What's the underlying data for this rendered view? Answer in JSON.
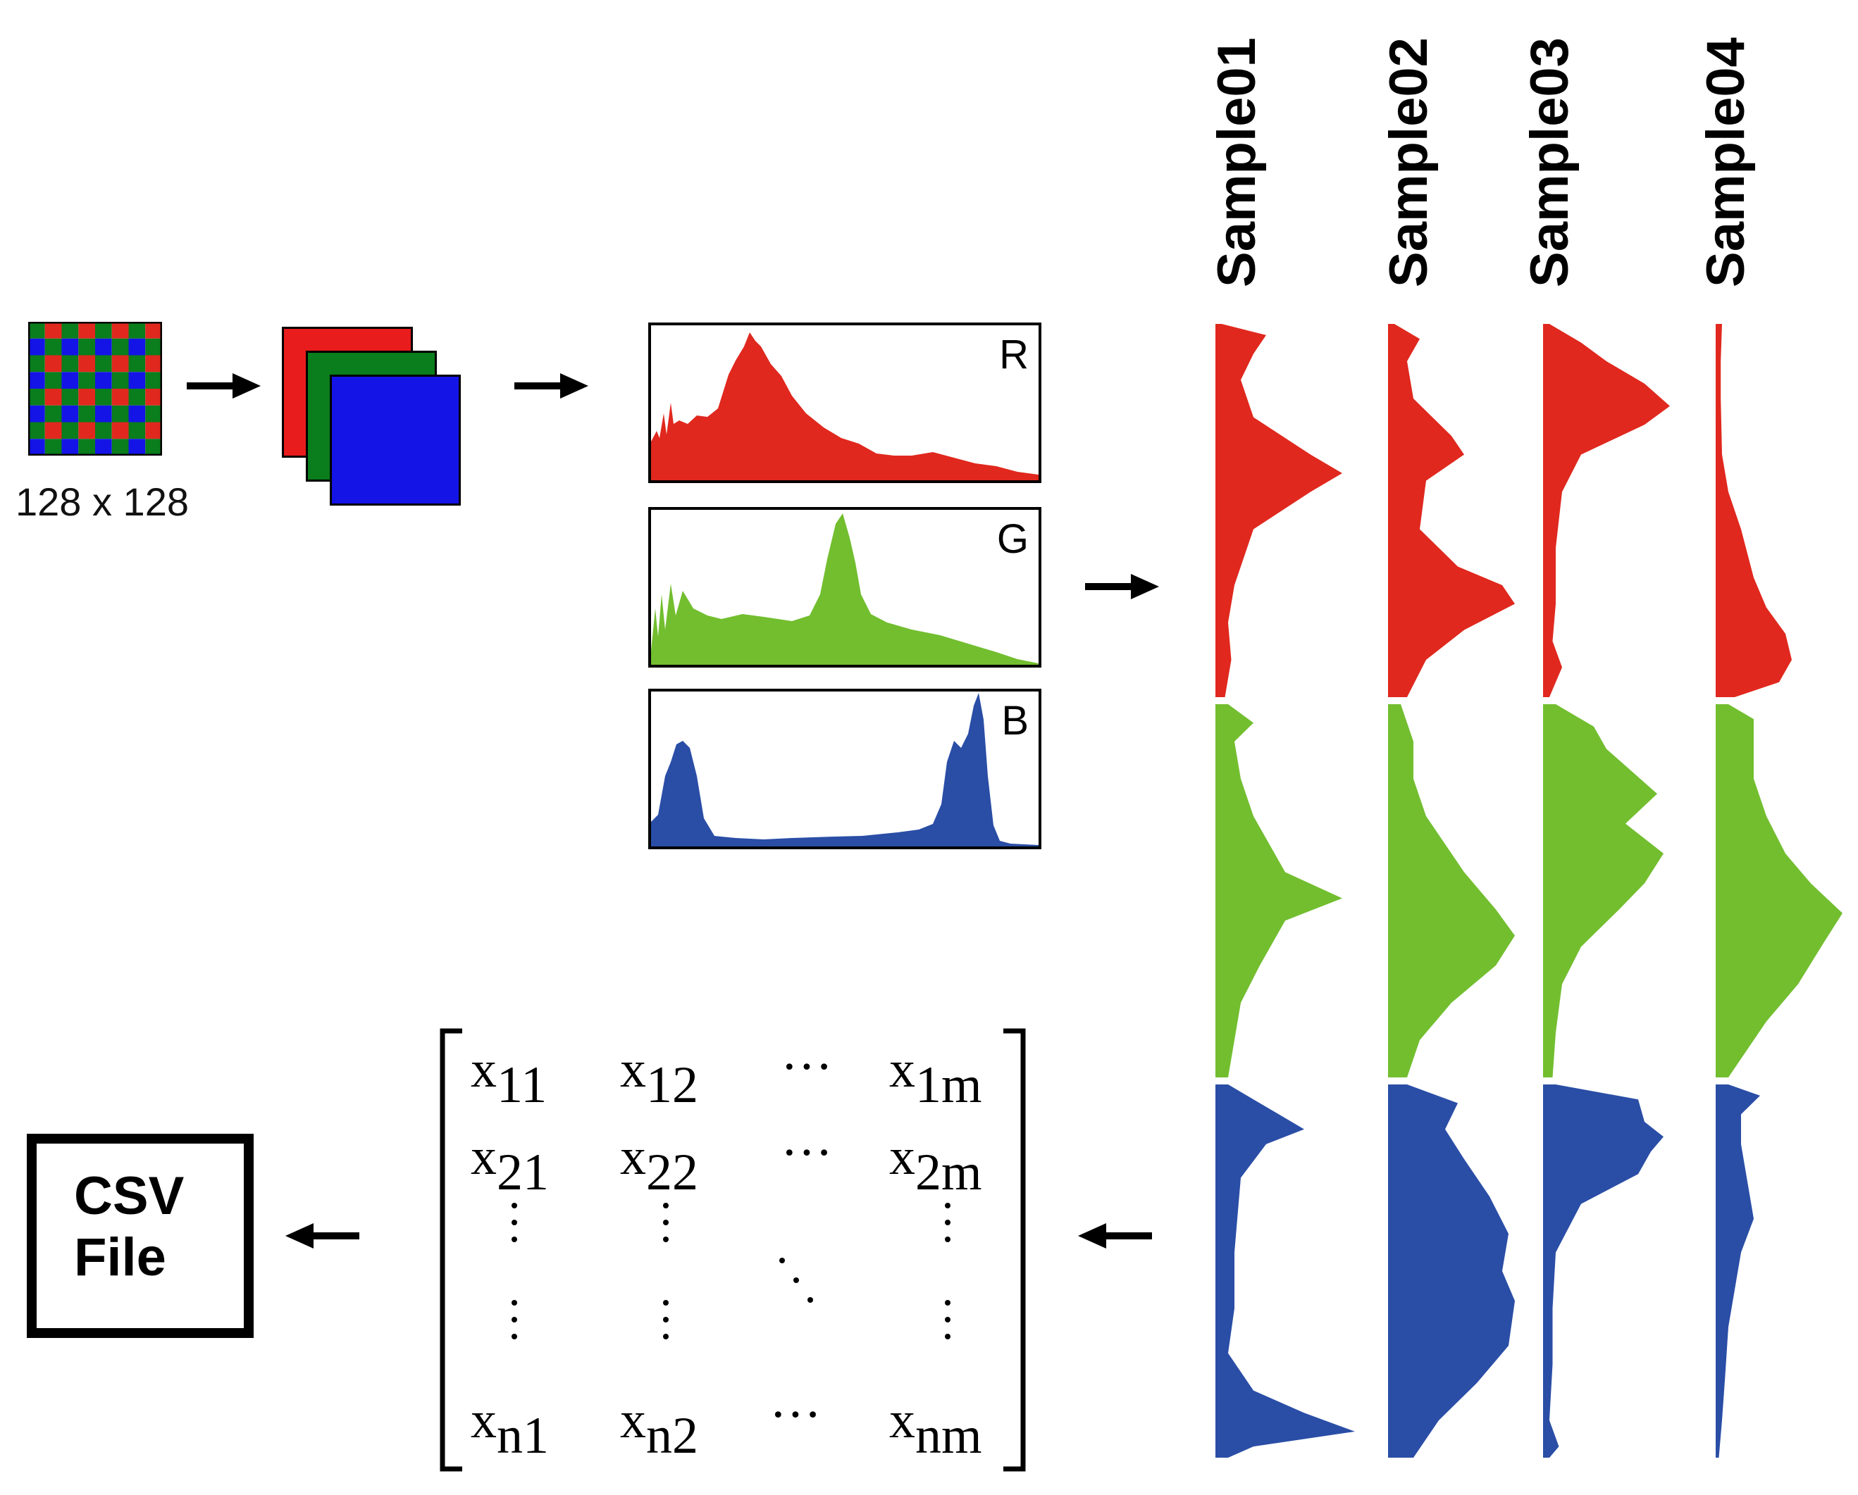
{
  "input": {
    "size_caption": "128 x 128"
  },
  "histograms": [
    {
      "letter": "R",
      "color": "#e0281e"
    },
    {
      "letter": "G",
      "color": "#72be2f"
    },
    {
      "letter": "B",
      "color": "#2a4ea6"
    }
  ],
  "samples": [
    "Sample01",
    "Sample02",
    "Sample03",
    "Sample04"
  ],
  "colors": {
    "red": "#e0281e",
    "green": "#72be2f",
    "blue": "#2a4ea6",
    "pixel_green": "#0a7d1c",
    "pixel_blue": "#1414e6"
  },
  "matrix": {
    "rows": [
      {
        "c1": "x",
        "s1": "11",
        "c2": "x",
        "s2": "12",
        "dots": "···",
        "c3": "x",
        "s3": "1m"
      },
      {
        "c1": "x",
        "s1": "21",
        "c2": "x",
        "s2": "22",
        "dots": "···",
        "c3": "x",
        "s3": "2m"
      },
      {
        "c1": "x",
        "s1": "n1",
        "c2": "x",
        "s2": "n2",
        "dots": "···",
        "c3": "x",
        "s3": "nm"
      }
    ]
  },
  "csv": {
    "line1": "CSV",
    "line2": "File"
  }
}
